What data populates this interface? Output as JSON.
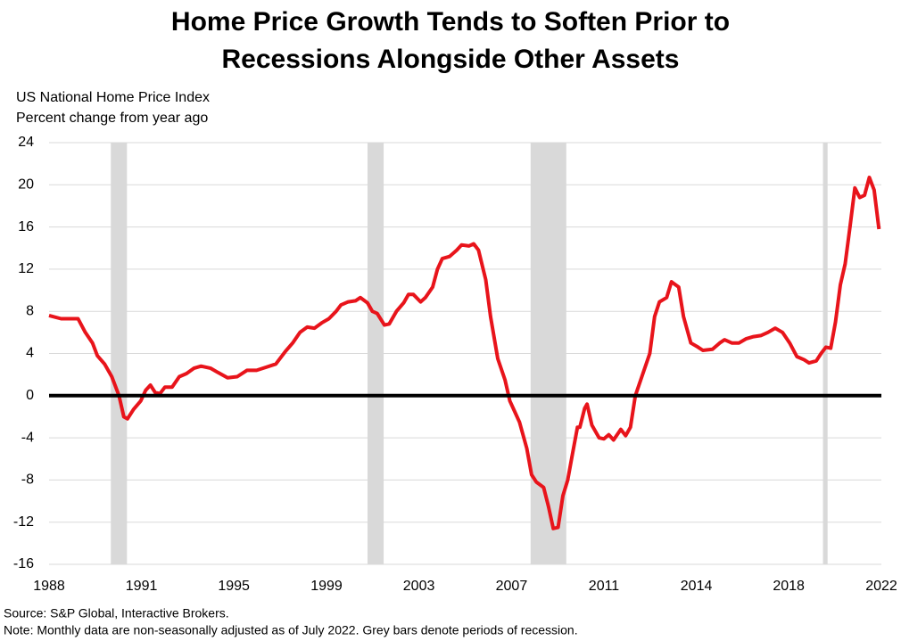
{
  "chart_data": {
    "type": "line",
    "title": "Home Price Growth Tends to Soften Prior to Recessions Alongside Other Assets",
    "y_label_lines": [
      "US National Home Price Index",
      "Percent change from year ago"
    ],
    "source": "Source: S&P Global, Interactive Brokers.",
    "note": "Note: Monthly data are non-seasonally adjusted as of July 2022. Grey bars denote periods of recession.",
    "color": "#e8141b",
    "recession_color": "#d9d9d9",
    "recessions": [
      [
        1990.56,
        1991.23
      ],
      [
        2001.2,
        2001.87
      ],
      [
        2007.96,
        2009.44
      ],
      [
        2020.08,
        2020.27
      ]
    ],
    "xlim": [
      1988,
      2022.5
    ],
    "xticks": [
      {
        "value": 1988,
        "label": "1988"
      },
      {
        "value": 1991.83,
        "label": "1991"
      },
      {
        "value": 1995.66,
        "label": "1995"
      },
      {
        "value": 1999.5,
        "label": "1999"
      },
      {
        "value": 2003.33,
        "label": "2003"
      },
      {
        "value": 2007.17,
        "label": "2007"
      },
      {
        "value": 2011.0,
        "label": "2011"
      },
      {
        "value": 2014.83,
        "label": "2014"
      },
      {
        "value": 2018.66,
        "label": "2018"
      },
      {
        "value": 2022.5,
        "label": "2022"
      }
    ],
    "ylim": [
      -16,
      24
    ],
    "yticks": [
      -16,
      -12,
      -8,
      -4,
      0,
      4,
      8,
      12,
      16,
      20,
      24
    ],
    "grid": true,
    "x": [
      1988.0,
      1988.5,
      1989.0,
      1989.2,
      1989.5,
      1989.8,
      1990.0,
      1990.3,
      1990.6,
      1990.9,
      1991.1,
      1991.25,
      1991.5,
      1991.8,
      1992.0,
      1992.2,
      1992.4,
      1992.6,
      1992.8,
      1993.1,
      1993.4,
      1993.7,
      1994.0,
      1994.3,
      1994.7,
      1995.0,
      1995.4,
      1995.8,
      1996.2,
      1996.6,
      1997.0,
      1997.4,
      1997.8,
      1998.1,
      1998.4,
      1998.7,
      1999.0,
      1999.3,
      1999.6,
      1999.9,
      2000.1,
      2000.4,
      2000.7,
      2000.9,
      2001.2,
      2001.4,
      2001.6,
      2001.9,
      2002.1,
      2002.4,
      2002.7,
      2002.9,
      2003.1,
      2003.4,
      2003.6,
      2003.9,
      2004.1,
      2004.3,
      2004.6,
      2004.9,
      2005.1,
      2005.4,
      2005.6,
      2005.8,
      2006.1,
      2006.3,
      2006.6,
      2006.9,
      2007.1,
      2007.3,
      2007.5,
      2007.8,
      2008.0,
      2008.2,
      2008.5,
      2008.7,
      2008.9,
      2009.1,
      2009.3,
      2009.5,
      2009.7,
      2009.9,
      2010.0,
      2010.2,
      2010.3,
      2010.5,
      2010.8,
      2011.0,
      2011.2,
      2011.4,
      2011.7,
      2011.9,
      2012.1,
      2012.3,
      2012.6,
      2012.9,
      2013.1,
      2013.3,
      2013.6,
      2013.8,
      2014.1,
      2014.3,
      2014.6,
      2014.9,
      2015.1,
      2015.5,
      2015.8,
      2016.0,
      2016.3,
      2016.6,
      2016.9,
      2017.2,
      2017.5,
      2017.8,
      2018.1,
      2018.4,
      2018.7,
      2019.0,
      2019.3,
      2019.5,
      2019.8,
      2020.0,
      2020.2,
      2020.4,
      2020.6,
      2020.8,
      2021.0,
      2021.2,
      2021.4,
      2021.6,
      2021.8,
      2022.0,
      2022.2,
      2022.4
    ],
    "values": [
      7.6,
      7.3,
      7.3,
      7.3,
      6.0,
      5.0,
      3.8,
      3.0,
      1.8,
      0.0,
      -2.0,
      -2.2,
      -1.3,
      -0.5,
      0.5,
      1.0,
      0.3,
      0.2,
      0.8,
      0.8,
      1.8,
      2.1,
      2.6,
      2.8,
      2.6,
      2.2,
      1.7,
      1.8,
      2.4,
      2.4,
      2.7,
      3.0,
      4.2,
      5.0,
      6.0,
      6.5,
      6.4,
      6.9,
      7.3,
      8.0,
      8.6,
      8.9,
      9.0,
      9.3,
      8.8,
      8.0,
      7.8,
      6.7,
      6.8,
      8.0,
      8.8,
      9.6,
      9.6,
      8.9,
      9.3,
      10.3,
      12.0,
      13.0,
      13.2,
      13.8,
      14.3,
      14.2,
      14.4,
      13.8,
      11.0,
      7.5,
      3.5,
      1.5,
      -0.5,
      -1.5,
      -2.5,
      -5.0,
      -7.5,
      -8.2,
      -8.7,
      -10.5,
      -12.6,
      -12.5,
      -9.5,
      -8.0,
      -5.5,
      -3.0,
      -3.0,
      -1.2,
      -0.8,
      -2.8,
      -4.0,
      -4.1,
      -3.7,
      -4.2,
      -3.2,
      -3.8,
      -3.0,
      0.0,
      2.0,
      4.0,
      7.5,
      8.9,
      9.3,
      10.8,
      10.3,
      7.5,
      5.0,
      4.6,
      4.3,
      4.4,
      5.0,
      5.3,
      5.0,
      5.0,
      5.4,
      5.6,
      5.7,
      6.0,
      6.4,
      6.0,
      5.0,
      3.7,
      3.4,
      3.1,
      3.3,
      4.0,
      4.6,
      4.5,
      7.0,
      10.5,
      12.5,
      16.0,
      19.7,
      18.8,
      19.0,
      20.7,
      19.5,
      15.8
    ]
  }
}
